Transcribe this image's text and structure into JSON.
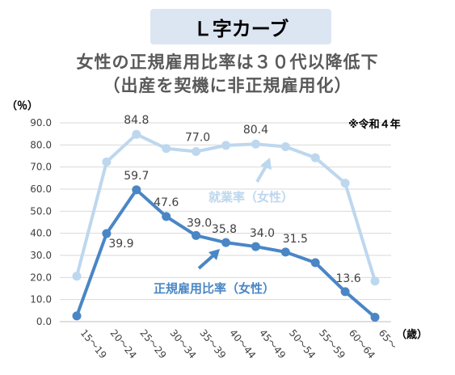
{
  "badge": "Ｌ字カーブ",
  "title_line1": "女性の正規雇用比率は３０代以降低下",
  "title_line2": "（出産を契機に非正規雇用化）",
  "note": "※令和４年",
  "colors": {
    "employment": "#bdd7ee",
    "regular": "#4a86c5",
    "grid": "#d9d9d9",
    "text": "#404040"
  },
  "chart_data": {
    "type": "line",
    "ylabel": "（％）",
    "xlabel": "（歳）",
    "ylim": [
      0,
      90
    ],
    "yticks": [
      "0.0",
      "10.0",
      "20.0",
      "30.0",
      "40.0",
      "50.0",
      "60.0",
      "70.0",
      "80.0",
      "90.0"
    ],
    "categories": [
      "15～19",
      "20～24",
      "25～29",
      "30～34",
      "35～39",
      "40～44",
      "45～49",
      "50～54",
      "55～59",
      "60～64",
      "65～"
    ],
    "series": [
      {
        "name": "就業率（女性）",
        "values": [
          20.6,
          72.3,
          84.8,
          78.4,
          77.0,
          79.8,
          80.4,
          79.2,
          74.2,
          62.7,
          18.4
        ],
        "labels": [
          "",
          "",
          "84.8",
          "",
          "77.0",
          "",
          "80.4",
          "",
          "",
          "",
          ""
        ]
      },
      {
        "name": "正規雇用比率（女性）",
        "values": [
          2.6,
          39.9,
          59.7,
          47.6,
          39.0,
          35.8,
          34.0,
          31.5,
          26.7,
          13.6,
          2.0
        ],
        "labels": [
          "",
          "39.9",
          "59.7",
          "47.6",
          "39.0",
          "35.8",
          "34.0",
          "31.5",
          "",
          "13.6",
          ""
        ]
      }
    ]
  }
}
